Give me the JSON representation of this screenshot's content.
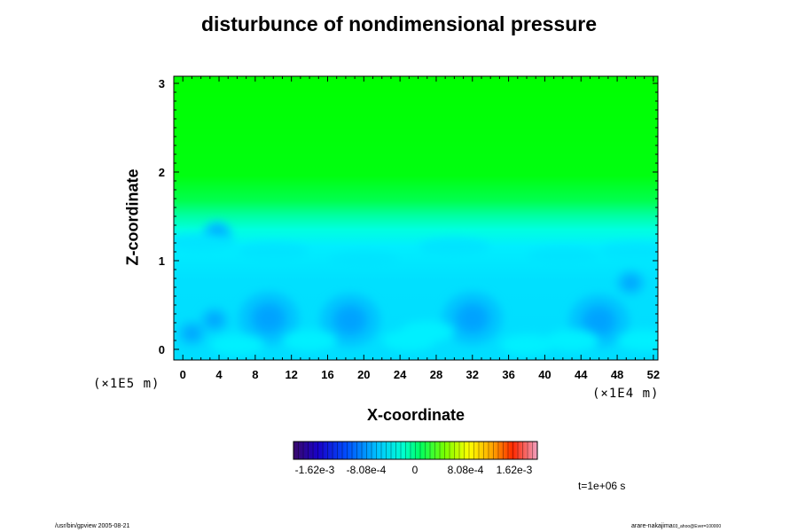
{
  "chart_data": {
    "type": "heatmap",
    "title": "disturbunce of nondimensional pressure",
    "xlabel": "X-coordinate",
    "ylabel": "Z-coordinate",
    "x_ticks": [
      "0",
      "4",
      "8",
      "12",
      "16",
      "20",
      "24",
      "28",
      "32",
      "36",
      "40",
      "44",
      "48",
      "52"
    ],
    "y_ticks": [
      "0",
      "1",
      "2",
      "3"
    ],
    "x_range": [
      -1,
      52.5
    ],
    "y_range": [
      -0.12,
      3.08
    ],
    "x_scale_note": "(×1E4 m)",
    "y_scale_note": "(×1E5 m)",
    "colorbar": {
      "tick_labels": [
        "-1.62e-3",
        "-8.08e-4",
        "0",
        "8.08e-4",
        "1.62e-3"
      ],
      "tick_values": [
        -0.00162,
        -0.000808,
        0,
        0.000808,
        0.00162
      ],
      "range": [
        -0.00202,
        0.00202
      ]
    },
    "field_summary": {
      "upper_layer_value": 0.0,
      "lower_layer_value": -0.0005,
      "transition_z": [
        1.5,
        1.9
      ],
      "minima": [
        {
          "x": 9.5,
          "z": 0.35,
          "value": -0.0011
        },
        {
          "x": 18.5,
          "z": 0.33,
          "value": -0.0009
        },
        {
          "x": 32.0,
          "z": 0.35,
          "value": -0.0009
        },
        {
          "x": 46.0,
          "z": 0.32,
          "value": -0.001
        },
        {
          "x": 1.0,
          "z": 0.18,
          "value": -0.0008
        },
        {
          "x": 3.5,
          "z": 0.33,
          "value": -0.0008
        },
        {
          "x": 3.8,
          "z": 1.3,
          "value": -0.00075
        },
        {
          "x": 49.5,
          "z": 0.75,
          "value": -0.0008
        }
      ]
    },
    "time_label": "t=1e+06 s"
  },
  "footer": {
    "left": "/usr/bin/gpview 2005-08-21",
    "right": "arare-nakajima",
    "right_small": "03_ahoo@Ever=100000"
  }
}
